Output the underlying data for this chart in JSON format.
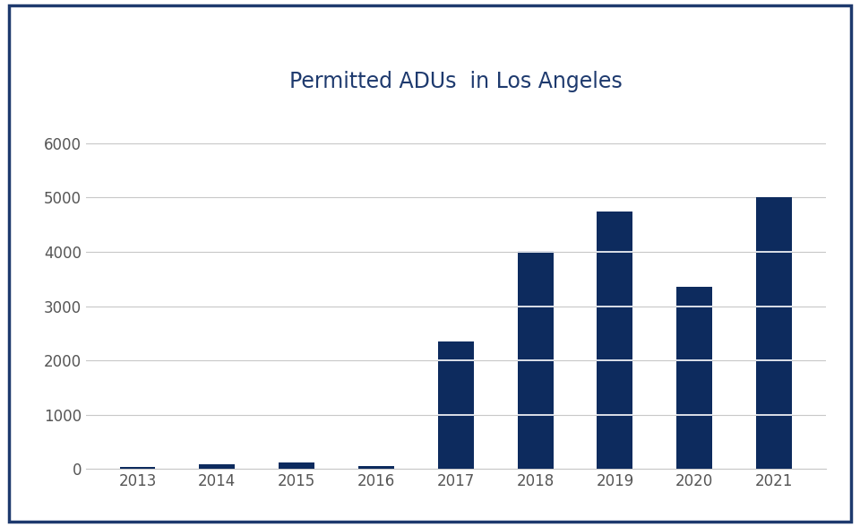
{
  "title": "Permitted ADUs  in Los Angeles",
  "categories": [
    "2013",
    "2014",
    "2015",
    "2016",
    "2017",
    "2018",
    "2019",
    "2020",
    "2021"
  ],
  "values": [
    45,
    80,
    120,
    60,
    2350,
    4020,
    4750,
    3360,
    5000
  ],
  "bar_color": "#0d2b5e",
  "background_color": "#ffffff",
  "border_color": "#1e3a6e",
  "title_color": "#1e3a6e",
  "grid_color": "#c8c8c8",
  "tick_color": "#555555",
  "ylim": [
    0,
    6600
  ],
  "yticks": [
    0,
    1000,
    2000,
    3000,
    4000,
    5000,
    6000
  ],
  "title_fontsize": 17,
  "tick_fontsize": 12,
  "bar_width": 0.45
}
